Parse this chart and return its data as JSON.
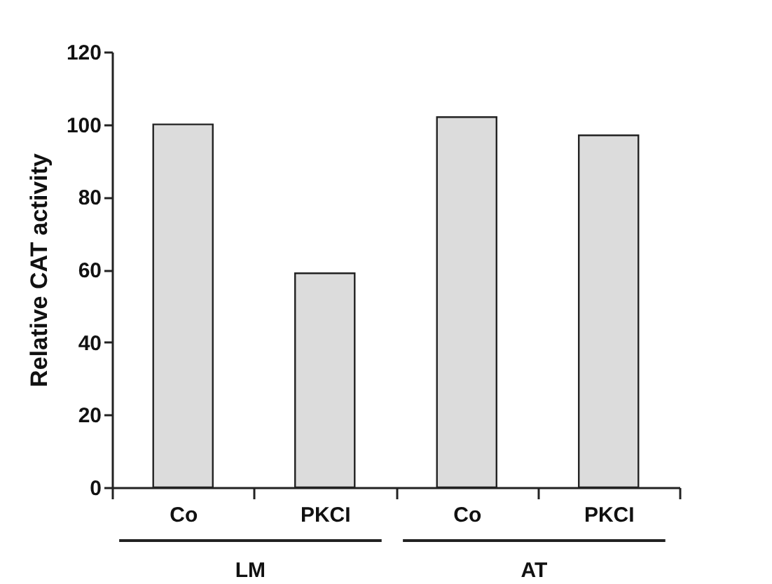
{
  "chart_data": {
    "type": "bar",
    "ylabel": "Relative CAT activity",
    "categories": [
      "Co",
      "PKCI",
      "Co",
      "PKCI"
    ],
    "values": [
      100,
      59,
      102,
      97
    ],
    "color": "#dcdcdc",
    "ylim": [
      0,
      120
    ],
    "yticks": [
      0,
      20,
      40,
      60,
      80,
      100,
      120
    ],
    "annotations": [
      "LM",
      "AT"
    ]
  }
}
